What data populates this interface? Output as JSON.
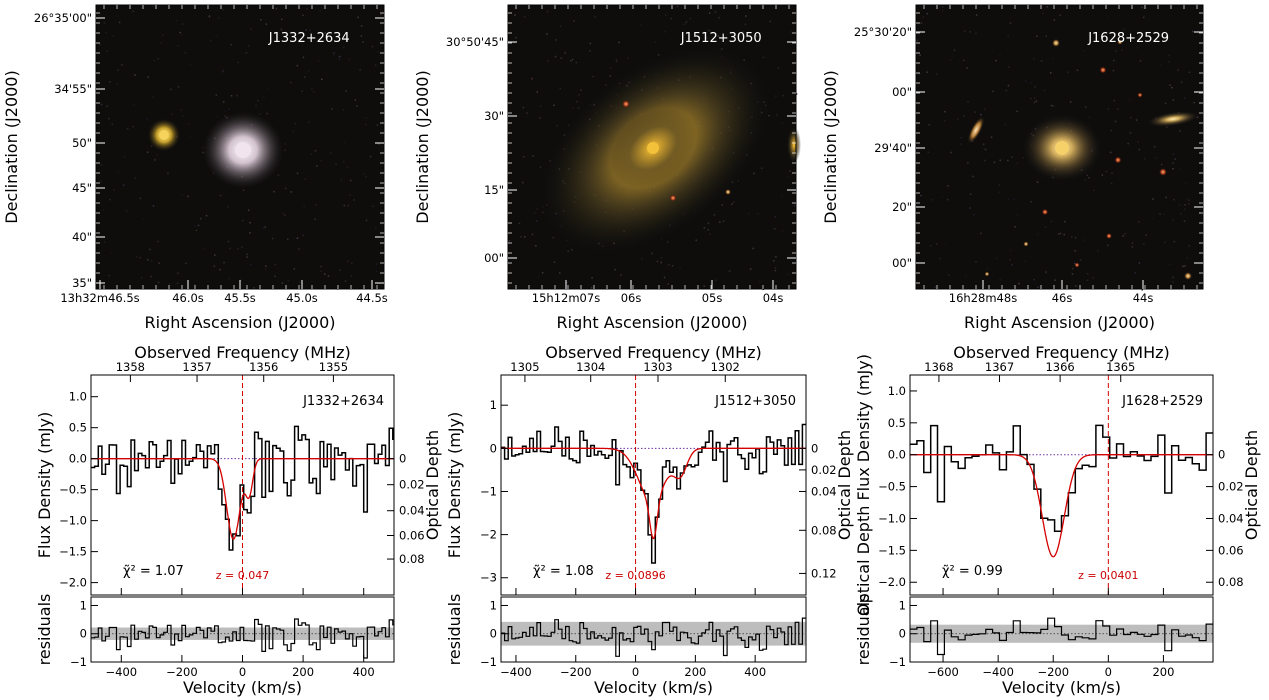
{
  "figure": {
    "image_panels": [
      {
        "label": "J1332+2634",
        "ylabel": "Declination (J2000)",
        "xlabel": "Right Ascension (J2000)",
        "yticks": [
          "26°35'00\"",
          "34'55\"",
          "50\"",
          "45\"",
          "40\"",
          "35\""
        ],
        "xticks": [
          "13h32m46.5s",
          "46.0s",
          "45.5s",
          "45.0s",
          "44.5s"
        ],
        "galaxy_color": "#f1e4ee",
        "companion_color": "#f6d35a"
      },
      {
        "label": "J1512+3050",
        "ylabel": "Declination (J2000)",
        "xlabel": "Right Ascension (J2000)",
        "yticks": [
          "30°50'45\"",
          "30\"",
          "15\"",
          "00\""
        ],
        "xticks": [
          "15h12m07s",
          "06s",
          "05s",
          "04s"
        ],
        "galaxy_color": "#f4c13a"
      },
      {
        "label": "J1628+2529",
        "ylabel": "Declination (J2000)",
        "xlabel": "Right Ascension (J2000)",
        "yticks": [
          "25°30'20\"",
          "00\"",
          "29'40\"",
          "20\"",
          "00\""
        ],
        "xticks": [
          "16h28m48s",
          "46s",
          "44s"
        ],
        "galaxy_color": "#f6d16a"
      }
    ],
    "spectra": [
      {
        "label": "J1332+2634",
        "ylabel": "Flux Density (mJy)",
        "ylabel_right": "Optical Depth",
        "xlabel": "Velocity (km/s)",
        "toplabel": "Observed Frequency (MHz)",
        "xlim": [
          -500,
          500
        ],
        "ylim": [
          -2.2,
          1.35
        ],
        "xticks": [
          -400,
          -200,
          0,
          200,
          400
        ],
        "yticks": [
          1.0,
          0.5,
          0.0,
          -0.5,
          -1.0,
          -1.5,
          -2.0
        ],
        "yticks_text": [
          "1.0",
          "0.5",
          "0.0",
          "−0.5",
          "−1.0",
          "−1.5",
          "−2.0"
        ],
        "top_ticks": [
          {
            "v": -370,
            "t": "1358"
          },
          {
            "v": -150,
            "t": "1357"
          },
          {
            "v": 70,
            "t": "1356"
          },
          {
            "v": 300,
            "t": "1355"
          }
        ],
        "right_ticks": [
          {
            "y": 0.0,
            "t": "0"
          },
          {
            "y": -0.42,
            "t": "0.02"
          },
          {
            "y": -0.84,
            "t": "0.04"
          },
          {
            "y": -1.24,
            "t": "0.06"
          },
          {
            "y": -1.62,
            "t": "0.08"
          }
        ],
        "redchi": "χ̃² = 1.07",
        "z_label": "z = 0.047",
        "resid_ylim": [
          -1.0,
          1.3
        ],
        "resid_yticks": [
          1,
          0,
          -1
        ],
        "resid_band": 0.22,
        "step": 12,
        "gauss": [
          {
            "a": 1.3,
            "mu": -30,
            "s": 22
          },
          {
            "a": 0.55,
            "mu": 22,
            "s": 12
          }
        ]
      },
      {
        "label": "J1512+3050",
        "ylabel": "Flux Density (mJy)",
        "ylabel_right": "Optical Depth",
        "xlabel": "Velocity (km/s)",
        "toplabel": "Observed Frequency (MHz)",
        "xlim": [
          -450,
          570
        ],
        "ylim": [
          -3.4,
          1.7
        ],
        "xticks": [
          -400,
          -200,
          0,
          200,
          400
        ],
        "yticks": [
          1,
          0,
          -1,
          -2,
          -3
        ],
        "yticks_text": [
          "1",
          "0",
          "−1",
          "−2",
          "−3"
        ],
        "top_ticks": [
          {
            "v": -370,
            "t": "1305"
          },
          {
            "v": -150,
            "t": "1304"
          },
          {
            "v": 75,
            "t": "1303"
          },
          {
            "v": 300,
            "t": "1302"
          }
        ],
        "right_ticks": [
          {
            "y": 0.0,
            "t": "0"
          },
          {
            "y": -0.5,
            "t": "0.02"
          },
          {
            "y": -1.0,
            "t": "0.04"
          },
          {
            "y": -1.9,
            "t": "0.08"
          },
          {
            "y": -2.9,
            "t": "0.12"
          }
        ],
        "redchi": "χ̃² = 1.08",
        "z_label": "z = 0.0896",
        "resid_ylim": [
          -1.0,
          1.3
        ],
        "resid_yticks": [
          1,
          0,
          -1
        ],
        "resid_band": 0.42,
        "step": 12,
        "gauss": [
          {
            "a": 1.2,
            "mu": 55,
            "s": 45
          },
          {
            "a": 0.9,
            "mu": 60,
            "s": 12
          },
          {
            "a": 0.55,
            "mu": 150,
            "s": 22
          }
        ]
      },
      {
        "label": "J1628+2529",
        "ylabel": "Optical Depth Flux Density (mJy)",
        "ylabel_right": "Optical Depth",
        "xlabel": "Velocity (km/s)",
        "toplabel": "Observed Frequency (MHz)",
        "xlim": [
          -720,
          380
        ],
        "ylim": [
          -2.2,
          1.25
        ],
        "xticks": [
          -600,
          -400,
          -200,
          0,
          200
        ],
        "yticks": [
          1.0,
          0.5,
          0.0,
          -0.5,
          -1.0,
          -1.5,
          -2.0
        ],
        "yticks_text": [
          "1.0",
          "0.5",
          "0.0",
          "−0.5",
          "−1.0",
          "−1.5",
          "−2.0"
        ],
        "top_ticks": [
          {
            "v": -615,
            "t": "1368"
          },
          {
            "v": -395,
            "t": "1367"
          },
          {
            "v": -175,
            "t": "1366"
          },
          {
            "v": 45,
            "t": "1365"
          }
        ],
        "right_ticks": [
          {
            "y": 0.0,
            "t": "0"
          },
          {
            "y": -0.5,
            "t": "0.02"
          },
          {
            "y": -1.0,
            "t": "0.04"
          },
          {
            "y": -1.5,
            "t": "0.06"
          },
          {
            "y": -2.0,
            "t": "0.08"
          }
        ],
        "redchi": "χ̃² = 0.99",
        "z_label": "z = 0.0401",
        "resid_ylim": [
          -1.0,
          1.3
        ],
        "resid_yticks": [
          1,
          0,
          -1
        ],
        "resid_band": 0.32,
        "step": 25,
        "gauss": [
          {
            "a": 1.6,
            "mu": -200,
            "s": 40
          }
        ]
      }
    ]
  },
  "chart_data": [
    {
      "type": "line",
      "title": "J1332+2634",
      "xlabel": "Velocity (km/s)",
      "ylabel": "Flux Density (mJy)",
      "xlim": [
        -500,
        500
      ],
      "ylim": [
        -2.2,
        1.35
      ],
      "reduced_chi2": 1.07,
      "redshift": 0.047,
      "components_velocity_kms": [
        -30,
        22
      ],
      "peak_flux_mjy": -1.85
    },
    {
      "type": "line",
      "title": "J1512+3050",
      "xlabel": "Velocity (km/s)",
      "ylabel": "Flux Density (mJy)",
      "xlim": [
        -450,
        570
      ],
      "ylim": [
        -3.4,
        1.7
      ],
      "reduced_chi2": 1.08,
      "redshift": 0.0896,
      "components_velocity_kms": [
        55,
        60,
        150
      ],
      "peak_flux_mjy": -2.9
    },
    {
      "type": "line",
      "title": "J1628+2529",
      "xlabel": "Velocity (km/s)",
      "ylabel": "Flux Density (mJy)",
      "xlim": [
        -720,
        380
      ],
      "ylim": [
        -2.2,
        1.25
      ],
      "reduced_chi2": 0.99,
      "redshift": 0.0401,
      "components_velocity_kms": [
        -200
      ],
      "peak_flux_mjy": -1.75
    }
  ]
}
